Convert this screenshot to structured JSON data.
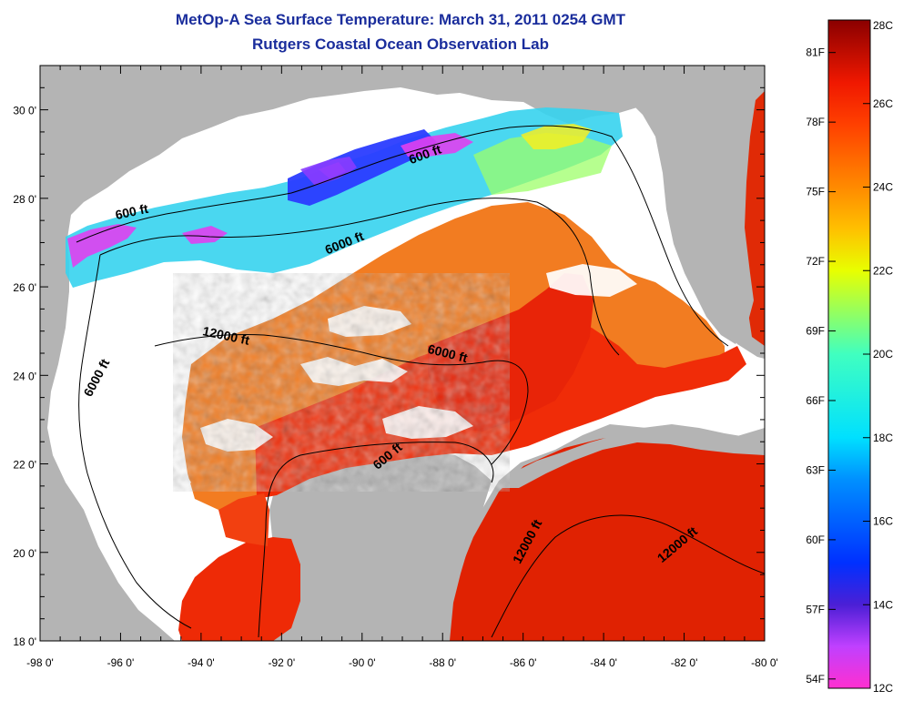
{
  "title_line1": "MetOp-A Sea Surface Temperature:  March 31, 2011 0254 GMT",
  "title_line2": "Rutgers Coastal Ocean Observation Lab",
  "chart_data": {
    "type": "heatmap",
    "x_range": [
      -98,
      -80
    ],
    "y_range": [
      18,
      31
    ],
    "x_ticks": [
      -98,
      -96,
      -94,
      -92,
      -90,
      -88,
      -86,
      -84,
      -82,
      -80
    ],
    "y_ticks": [
      18,
      20,
      22,
      24,
      26,
      28,
      30
    ],
    "x_tick_labels": [
      "-98 0'",
      "-96 0'",
      "-94 0'",
      "-92 0'",
      "-90 0'",
      "-88 0'",
      "-86 0'",
      "-84 0'",
      "-82 0'",
      "-80 0'"
    ],
    "y_tick_labels": [
      "18 0'",
      "20 0'",
      "22 0'",
      "24 0'",
      "26 0'",
      "28 0'",
      "30 0'"
    ],
    "contour_labels": [
      {
        "text": "600 ft",
        "lon": -95.7,
        "lat": 27.6,
        "angle": -12
      },
      {
        "text": "600 ft",
        "lon": -88.4,
        "lat": 28.9,
        "angle": -20
      },
      {
        "text": "6000 ft",
        "lon": -90.4,
        "lat": 26.9,
        "angle": -22
      },
      {
        "text": "12000 ft",
        "lon": -93.4,
        "lat": 24.8,
        "angle": 12
      },
      {
        "text": "6000 ft",
        "lon": -96.5,
        "lat": 23.9,
        "angle": -62
      },
      {
        "text": "6000 ft",
        "lon": -87.9,
        "lat": 24.4,
        "angle": 14
      },
      {
        "text": "600 ft",
        "lon": -89.3,
        "lat": 22.1,
        "angle": -40
      },
      {
        "text": "12000 ft",
        "lon": -85.8,
        "lat": 20.2,
        "angle": -62
      },
      {
        "text": "12000 ft",
        "lon": -82.1,
        "lat": 20.1,
        "angle": -40
      }
    ],
    "colorbar": {
      "min_c": 12,
      "max_c": 28,
      "celsius_labels": [
        "28C",
        "26C",
        "24C",
        "22C",
        "20C",
        "18C",
        "16C",
        "14C",
        "12C"
      ],
      "fahrenheit_labels": [
        "81F",
        "78F",
        "75F",
        "72F",
        "69F",
        "66F",
        "63F",
        "60F",
        "57F",
        "54F"
      ],
      "stops": [
        {
          "c": 12,
          "color": "#ff2fd0"
        },
        {
          "c": 13,
          "color": "#c040ff"
        },
        {
          "c": 14,
          "color": "#4b1fd6"
        },
        {
          "c": 15,
          "color": "#0030ff"
        },
        {
          "c": 17,
          "color": "#0090ff"
        },
        {
          "c": 18,
          "color": "#00e0ff"
        },
        {
          "c": 20,
          "color": "#40ffc0"
        },
        {
          "c": 22,
          "color": "#e8ff00"
        },
        {
          "c": 23,
          "color": "#ffc000"
        },
        {
          "c": 24,
          "color": "#ff8a00"
        },
        {
          "c": 25.5,
          "color": "#ff4000"
        },
        {
          "c": 26.5,
          "color": "#f01800"
        },
        {
          "c": 28,
          "color": "#8a0000"
        }
      ]
    }
  },
  "colors": {
    "land": "#b4b4b4",
    "cloud": "#ffffff",
    "title": "#1a2d9c",
    "warm_water": "#f02a08",
    "warm_water_dark": "#d81c02",
    "orange_water": "#f27a14",
    "gulf_cool_cyan": "#33d6f0",
    "gulf_cool_blue": "#2a4cff",
    "gulf_cool_magenta": "#e63fe6"
  }
}
